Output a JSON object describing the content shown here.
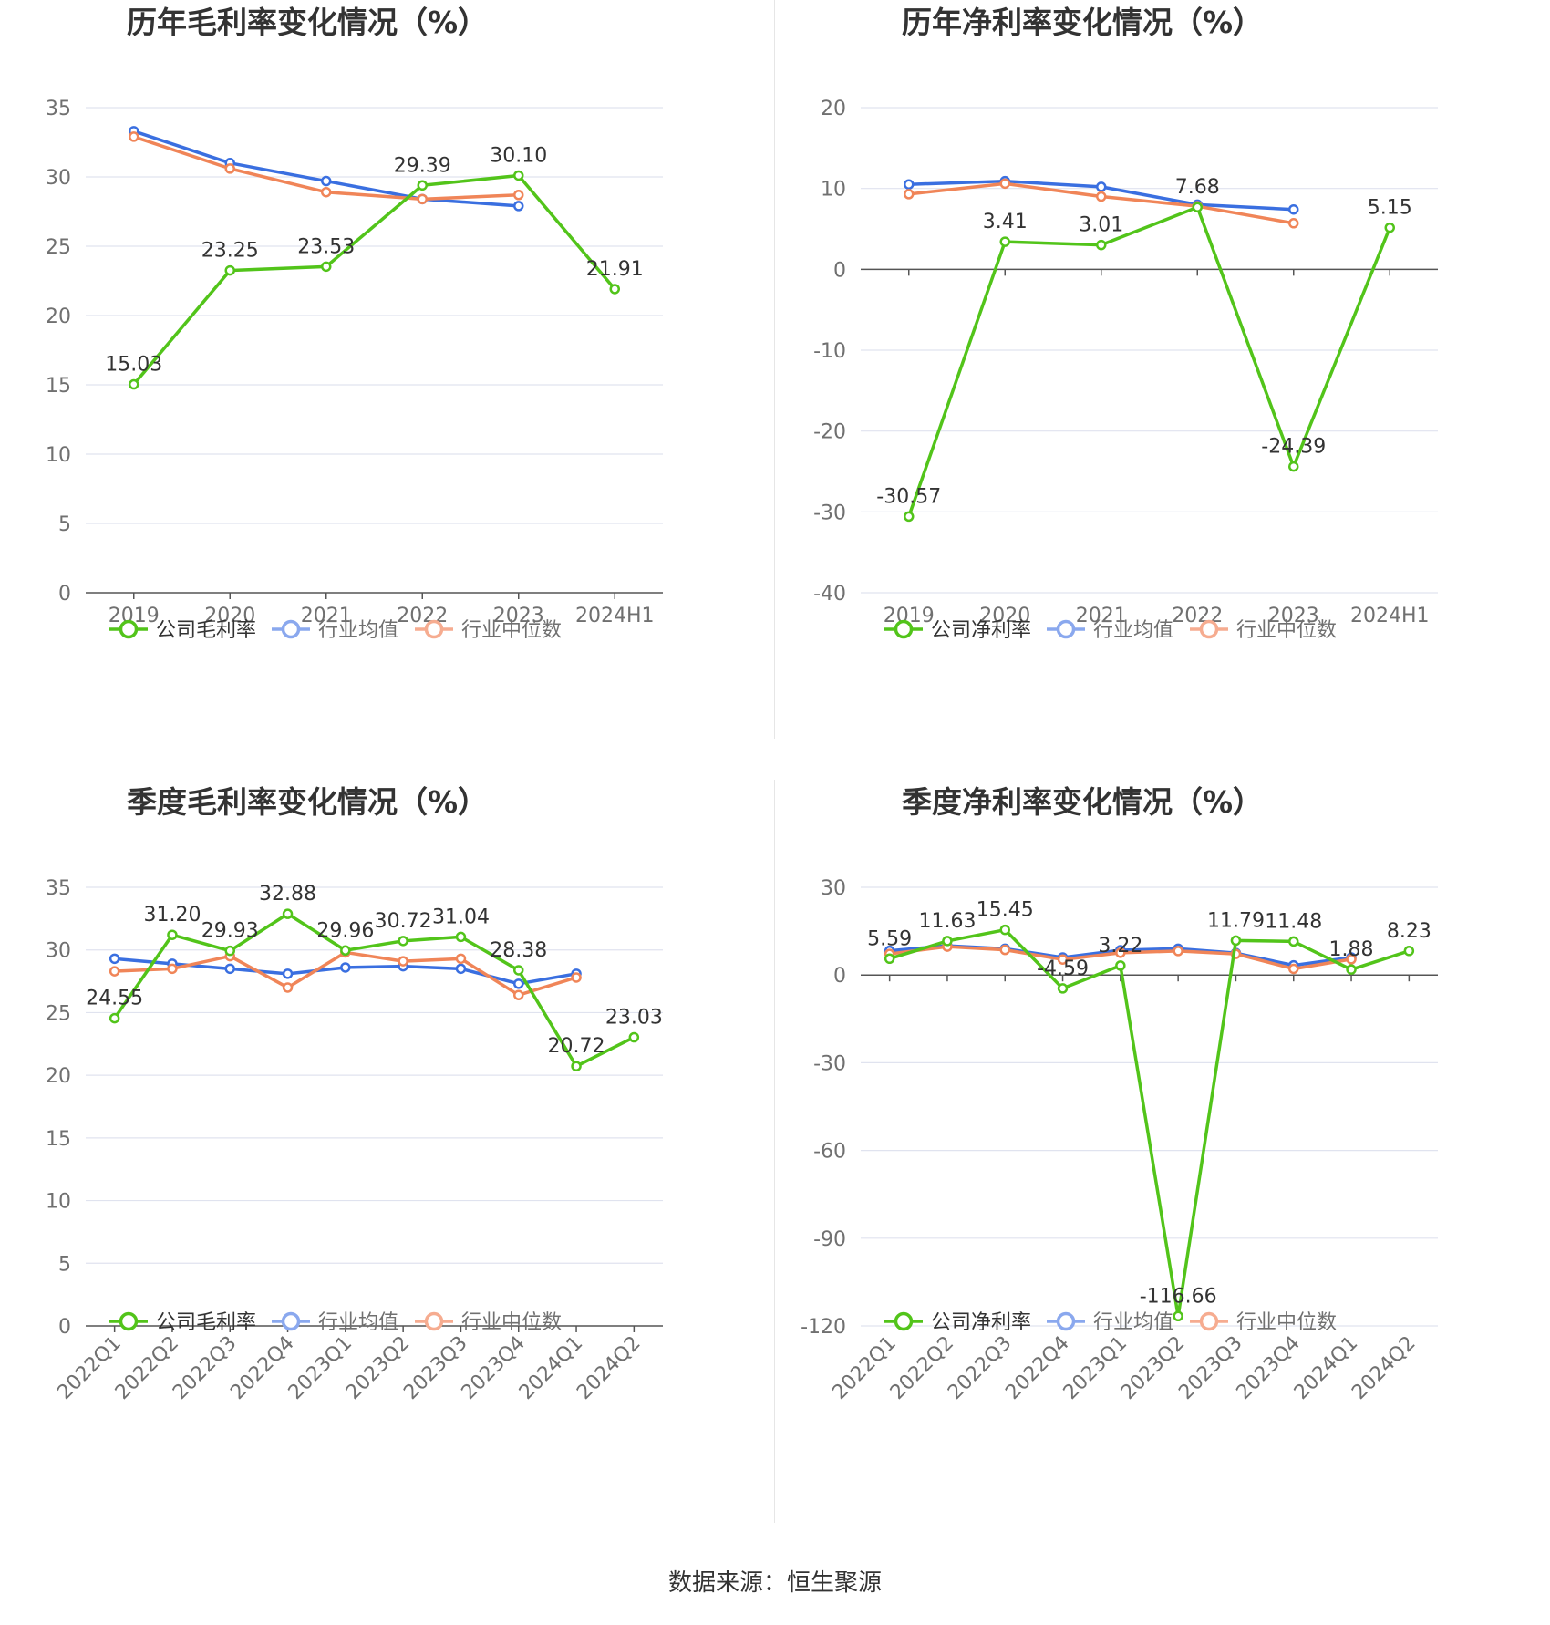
{
  "colors": {
    "company": "#52c41a",
    "avg": "#3a6fe0",
    "median": "#f08558",
    "grid": "#e0e3ef",
    "axis": "#555555",
    "text": "#333333",
    "tick": "#707070"
  },
  "charts": [
    {
      "id": "annual-gross",
      "title": "历年毛利率变化情况（%）",
      "categories": [
        "2019",
        "2020",
        "2021",
        "2022",
        "2023",
        "2024H1"
      ],
      "rotate_labels": false,
      "y_min": 0,
      "y_max": 35,
      "y_step": 5,
      "series": [
        {
          "key": "company",
          "name": "公司毛利率",
          "values": [
            15.03,
            23.25,
            23.53,
            29.39,
            30.1,
            21.91
          ],
          "labels": [
            "15.03",
            "23.25",
            "23.53",
            "29.39",
            "30.10",
            "21.91"
          ]
        },
        {
          "key": "avg",
          "name": "行业均值",
          "values": [
            33.3,
            31.0,
            29.7,
            28.4,
            27.9,
            null
          ]
        },
        {
          "key": "median",
          "name": "行业中位数",
          "values": [
            32.9,
            30.6,
            28.9,
            28.4,
            28.7,
            null
          ]
        }
      ]
    },
    {
      "id": "annual-net",
      "title": "历年净利率变化情况（%）",
      "categories": [
        "2019",
        "2020",
        "2021",
        "2022",
        "2023",
        "2024H1"
      ],
      "rotate_labels": false,
      "y_min": -40,
      "y_max": 20,
      "y_step": 10,
      "series": [
        {
          "key": "company",
          "name": "公司净利率",
          "values": [
            -30.57,
            3.41,
            3.01,
            7.68,
            -24.39,
            5.15
          ],
          "labels": [
            "-30.57",
            "3.41",
            "3.01",
            "7.68",
            "-24.39",
            "5.15"
          ]
        },
        {
          "key": "avg",
          "name": "行业均值",
          "values": [
            10.5,
            10.9,
            10.2,
            8.0,
            7.4,
            null
          ]
        },
        {
          "key": "median",
          "name": "行业中位数",
          "values": [
            9.3,
            10.6,
            9.0,
            7.8,
            5.7,
            null
          ]
        }
      ]
    },
    {
      "id": "quarterly-gross",
      "title": "季度毛利率变化情况（%）",
      "categories": [
        "2022Q1",
        "2022Q2",
        "2022Q3",
        "2022Q4",
        "2023Q1",
        "2023Q2",
        "2023Q3",
        "2023Q4",
        "2024Q1",
        "2024Q2"
      ],
      "rotate_labels": true,
      "y_min": 0,
      "y_max": 35,
      "y_step": 5,
      "series": [
        {
          "key": "company",
          "name": "公司毛利率",
          "values": [
            24.55,
            31.2,
            29.93,
            32.88,
            29.96,
            30.72,
            31.04,
            28.38,
            20.72,
            23.03
          ],
          "labels": [
            "24.55",
            "31.20",
            "29.93",
            "32.88",
            "29.96",
            "30.72",
            "31.04",
            "28.38",
            "20.72",
            "23.03"
          ]
        },
        {
          "key": "avg",
          "name": "行业均值",
          "values": [
            29.3,
            28.9,
            28.5,
            28.1,
            28.6,
            28.7,
            28.5,
            27.3,
            28.1,
            null
          ]
        },
        {
          "key": "median",
          "name": "行业中位数",
          "values": [
            28.3,
            28.5,
            29.5,
            27.0,
            29.8,
            29.1,
            29.3,
            26.4,
            27.8,
            null
          ]
        }
      ]
    },
    {
      "id": "quarterly-net",
      "title": "季度净利率变化情况（%）",
      "categories": [
        "2022Q1",
        "2022Q2",
        "2022Q3",
        "2022Q4",
        "2023Q1",
        "2023Q2",
        "2023Q3",
        "2023Q4",
        "2024Q1",
        "2024Q2"
      ],
      "rotate_labels": true,
      "y_min": -120,
      "y_max": 30,
      "y_step": 30,
      "series": [
        {
          "key": "company",
          "name": "公司净利率",
          "values": [
            5.59,
            11.63,
            15.45,
            -4.59,
            3.22,
            -116.66,
            11.79,
            11.48,
            1.88,
            8.23
          ],
          "labels": [
            "5.59",
            "11.63",
            "15.45",
            "-4.59",
            "3.22",
            "-116.66",
            "11.79",
            "11.48",
            "1.88",
            "8.23"
          ]
        },
        {
          "key": "avg",
          "name": "行业均值",
          "values": [
            8.3,
            10.0,
            9.0,
            6.0,
            8.5,
            9.0,
            7.5,
            3.3,
            6.0,
            null
          ]
        },
        {
          "key": "median",
          "name": "行业中位数",
          "values": [
            7.2,
            9.7,
            8.6,
            5.3,
            7.6,
            8.2,
            7.2,
            2.1,
            5.4,
            null
          ]
        }
      ]
    }
  ],
  "source": "数据来源：恒生聚源"
}
